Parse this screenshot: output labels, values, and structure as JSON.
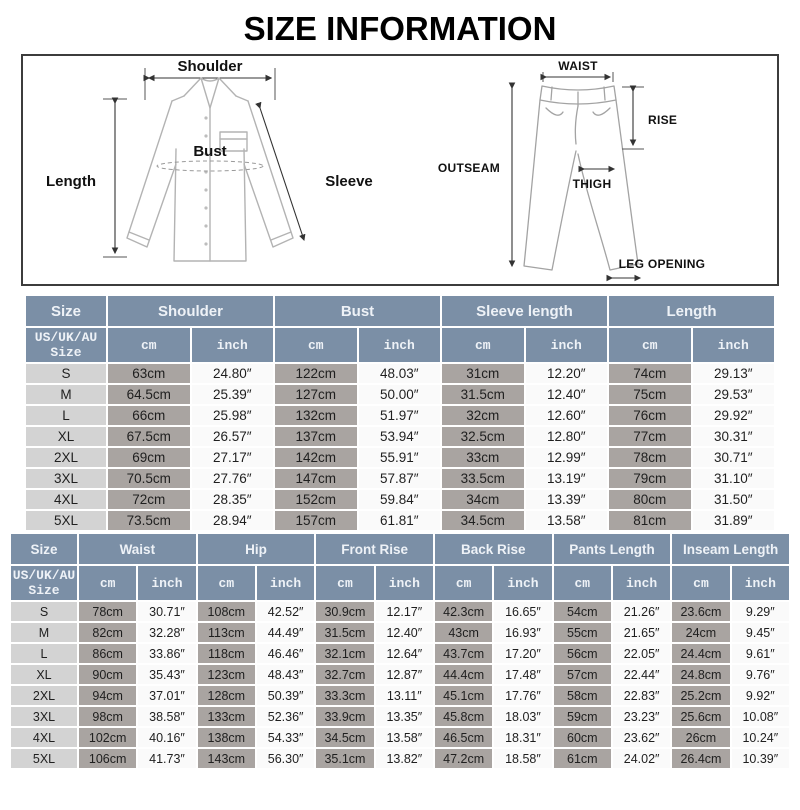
{
  "title": "SIZE INFORMATION",
  "colors": {
    "header-bg": "#7b8fa6",
    "header-text": "#eef2f7",
    "size-cell-bg": "#d3d3d3",
    "cm-cell-bg": "#a9a4a1",
    "inch-cell-bg": "#fafafa",
    "data-text": "#1f1f1f",
    "garment-line": "#b3b3b3"
  },
  "diagram": {
    "shirt": {
      "shoulder": "Shoulder",
      "length": "Length",
      "bust": "Bust",
      "sleeve": "Sleeve"
    },
    "pants": {
      "waist": "WAIST",
      "rise": "RISE",
      "outseam": "OUTSEAM",
      "thigh": "THIGH",
      "leg_opening": "LEG OPENING"
    }
  },
  "tables": {
    "shirt": {
      "size_label": "Size",
      "size_sub_label": "US/UK/AU\nSize",
      "groups": [
        "Shoulder",
        "Bust",
        "Sleeve length",
        "Length"
      ],
      "units": [
        "cm",
        "inch"
      ],
      "rows": [
        {
          "size": "S",
          "values": [
            "63cm",
            "24.80″",
            "122cm",
            "48.03″",
            "31cm",
            "12.20″",
            "74cm",
            "29.13″"
          ]
        },
        {
          "size": "M",
          "values": [
            "64.5cm",
            "25.39″",
            "127cm",
            "50.00″",
            "31.5cm",
            "12.40″",
            "75cm",
            "29.53″"
          ]
        },
        {
          "size": "L",
          "values": [
            "66cm",
            "25.98″",
            "132cm",
            "51.97″",
            "32cm",
            "12.60″",
            "76cm",
            "29.92″"
          ]
        },
        {
          "size": "XL",
          "values": [
            "67.5cm",
            "26.57″",
            "137cm",
            "53.94″",
            "32.5cm",
            "12.80″",
            "77cm",
            "30.31″"
          ]
        },
        {
          "size": "2XL",
          "values": [
            "69cm",
            "27.17″",
            "142cm",
            "55.91″",
            "33cm",
            "12.99″",
            "78cm",
            "30.71″"
          ]
        },
        {
          "size": "3XL",
          "values": [
            "70.5cm",
            "27.76″",
            "147cm",
            "57.87″",
            "33.5cm",
            "13.19″",
            "79cm",
            "31.10″"
          ]
        },
        {
          "size": "4XL",
          "values": [
            "72cm",
            "28.35″",
            "152cm",
            "59.84″",
            "34cm",
            "13.39″",
            "80cm",
            "31.50″"
          ]
        },
        {
          "size": "5XL",
          "values": [
            "73.5cm",
            "28.94″",
            "157cm",
            "61.81″",
            "34.5cm",
            "13.58″",
            "81cm",
            "31.89″"
          ]
        }
      ]
    },
    "pants": {
      "size_label": "Size",
      "size_sub_label": "US/UK/AU\nSize",
      "groups": [
        "Waist",
        "Hip",
        "Front Rise",
        "Back Rise",
        "Pants Length",
        "Inseam Length"
      ],
      "units": [
        "cm",
        "inch"
      ],
      "rows": [
        {
          "size": "S",
          "values": [
            "78cm",
            "30.71″",
            "108cm",
            "42.52″",
            "30.9cm",
            "12.17″",
            "42.3cm",
            "16.65″",
            "54cm",
            "21.26″",
            "23.6cm",
            "9.29″"
          ]
        },
        {
          "size": "M",
          "values": [
            "82cm",
            "32.28″",
            "113cm",
            "44.49″",
            "31.5cm",
            "12.40″",
            "43cm",
            "16.93″",
            "55cm",
            "21.65″",
            "24cm",
            "9.45″"
          ]
        },
        {
          "size": "L",
          "values": [
            "86cm",
            "33.86″",
            "118cm",
            "46.46″",
            "32.1cm",
            "12.64″",
            "43.7cm",
            "17.20″",
            "56cm",
            "22.05″",
            "24.4cm",
            "9.61″"
          ]
        },
        {
          "size": "XL",
          "values": [
            "90cm",
            "35.43″",
            "123cm",
            "48.43″",
            "32.7cm",
            "12.87″",
            "44.4cm",
            "17.48″",
            "57cm",
            "22.44″",
            "24.8cm",
            "9.76″"
          ]
        },
        {
          "size": "2XL",
          "values": [
            "94cm",
            "37.01″",
            "128cm",
            "50.39″",
            "33.3cm",
            "13.11″",
            "45.1cm",
            "17.76″",
            "58cm",
            "22.83″",
            "25.2cm",
            "9.92″"
          ]
        },
        {
          "size": "3XL",
          "values": [
            "98cm",
            "38.58″",
            "133cm",
            "52.36″",
            "33.9cm",
            "13.35″",
            "45.8cm",
            "18.03″",
            "59cm",
            "23.23″",
            "25.6cm",
            "10.08″"
          ]
        },
        {
          "size": "4XL",
          "values": [
            "102cm",
            "40.16″",
            "138cm",
            "54.33″",
            "34.5cm",
            "13.58″",
            "46.5cm",
            "18.31″",
            "60cm",
            "23.62″",
            "26cm",
            "10.24″"
          ]
        },
        {
          "size": "5XL",
          "values": [
            "106cm",
            "41.73″",
            "143cm",
            "56.30″",
            "35.1cm",
            "13.82″",
            "47.2cm",
            "18.58″",
            "61cm",
            "24.02″",
            "26.4cm",
            "10.39″"
          ]
        }
      ]
    }
  }
}
